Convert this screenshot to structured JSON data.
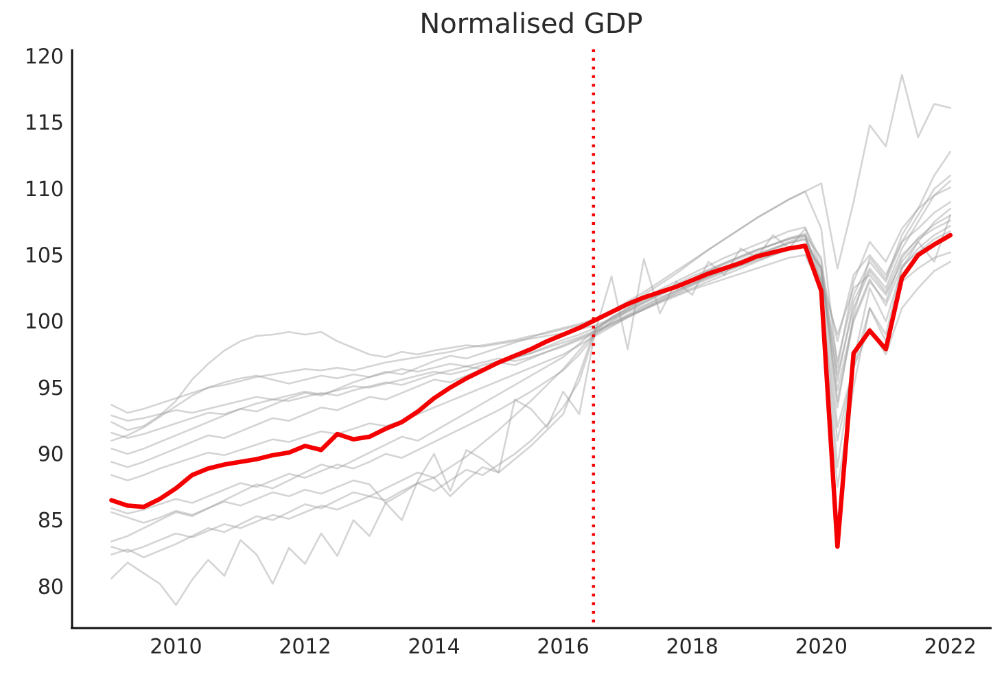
{
  "title": "Normalised GDP",
  "chart_data": {
    "type": "line",
    "title": "Normalised GDP",
    "xlabel": "",
    "ylabel": "",
    "grid": false,
    "legend": "none",
    "x_ticks": [
      "2010",
      "2012",
      "2014",
      "2016",
      "2018",
      "2020",
      "2022"
    ],
    "x_tick_values": [
      2010,
      2012,
      2014,
      2016,
      2018,
      2020,
      2022
    ],
    "y_ticks": [
      "80",
      "85",
      "90",
      "95",
      "100",
      "105",
      "110",
      "115",
      "120"
    ],
    "y_tick_values": [
      80,
      85,
      90,
      95,
      100,
      105,
      110,
      115,
      120
    ],
    "xlim": [
      2008.39,
      2022.64
    ],
    "ylim": [
      76.86,
      120.52
    ],
    "vline": {
      "x": 2016.47,
      "color": "#f40000",
      "style": "dotted"
    },
    "x": [
      2009.0,
      2009.25,
      2009.5,
      2009.75,
      2010.0,
      2010.25,
      2010.5,
      2010.75,
      2011.0,
      2011.25,
      2011.5,
      2011.75,
      2012.0,
      2012.25,
      2012.5,
      2012.75,
      2013.0,
      2013.25,
      2013.5,
      2013.75,
      2014.0,
      2014.25,
      2014.5,
      2014.75,
      2015.0,
      2015.25,
      2015.5,
      2015.75,
      2016.0,
      2016.25,
      2016.5,
      2016.75,
      2017.0,
      2017.25,
      2017.5,
      2017.75,
      2018.0,
      2018.25,
      2018.5,
      2018.75,
      2019.0,
      2019.25,
      2019.5,
      2019.75,
      2020.0,
      2020.25,
      2020.5,
      2020.75,
      2021.0,
      2021.25,
      2021.5,
      2021.75,
      2022.0
    ],
    "main_series": {
      "name": "highlighted-country",
      "color": "#f40000",
      "line_width": 6.5,
      "values": [
        86.5,
        86.1,
        86.0,
        86.6,
        87.4,
        88.4,
        88.9,
        89.2,
        89.4,
        89.6,
        89.9,
        90.1,
        90.6,
        90.3,
        91.5,
        91.1,
        91.3,
        91.9,
        92.4,
        93.2,
        94.2,
        95.0,
        95.7,
        96.3,
        96.9,
        97.4,
        97.9,
        98.5,
        99.0,
        99.5,
        100.1,
        100.7,
        101.3,
        101.8,
        102.2,
        102.6,
        103.1,
        103.6,
        104.0,
        104.4,
        104.9,
        105.2,
        105.5,
        105.7,
        102.3,
        83.0,
        97.6,
        99.3,
        97.9,
        103.3,
        105.0,
        105.8,
        106.5
      ]
    },
    "background_color": "#999999",
    "background_opacity": 0.42,
    "background_line_width": 2.6,
    "background_series": [
      {
        "name": "series-01",
        "values": [
          93.7,
          93.1,
          93.4,
          93.8,
          94.2,
          94.6,
          95.0,
          95.2,
          95.5,
          95.8,
          96.0,
          96.2,
          96.4,
          96.3,
          96.5,
          96.3,
          96.6,
          96.9,
          97.1,
          97.3,
          97.5,
          97.7,
          98.0,
          98.2,
          98.4,
          98.6,
          98.9,
          99.1,
          99.4,
          99.7,
          100.0,
          100.6,
          101.3,
          102.0,
          102.8,
          103.6,
          104.5,
          105.4,
          106.2,
          107.0,
          107.8,
          108.5,
          109.2,
          109.8,
          110.4,
          104.0,
          109.0,
          114.8,
          113.2,
          118.6,
          113.9,
          116.4,
          116.1
        ]
      },
      {
        "name": "series-02",
        "values": [
          92.4,
          91.8,
          92.1,
          92.9,
          94.0,
          95.6,
          96.8,
          97.8,
          98.5,
          98.9,
          99.0,
          99.2,
          99.0,
          99.2,
          98.5,
          98.0,
          97.5,
          97.3,
          97.7,
          97.5,
          97.8,
          98.0,
          98.2,
          98.1,
          98.3,
          98.5,
          98.7,
          98.9,
          99.1,
          99.4,
          99.7,
          100.2,
          100.8,
          101.4,
          102.0,
          102.6,
          103.2,
          103.8,
          104.4,
          104.9,
          105.4,
          105.8,
          106.2,
          106.5,
          104.8,
          95.5,
          101.5,
          104.0,
          102.5,
          105.5,
          107.5,
          109.5,
          110.6
        ]
      },
      {
        "name": "series-03",
        "values": [
          92.9,
          92.5,
          92.7,
          93.0,
          93.3,
          93.1,
          93.4,
          93.7,
          94.0,
          94.3,
          94.1,
          94.4,
          94.7,
          94.5,
          94.8,
          95.1,
          95.0,
          95.3,
          95.6,
          95.9,
          96.2,
          96.0,
          96.3,
          96.7,
          97.0,
          97.3,
          97.6,
          98.0,
          98.4,
          98.8,
          99.3,
          99.9,
          100.5,
          101.1,
          101.7,
          102.3,
          102.9,
          103.4,
          103.9,
          104.4,
          105.0,
          105.5,
          106.0,
          106.4,
          103.5,
          97.0,
          102.0,
          104.5,
          103.0,
          106.0,
          108.0,
          110.0,
          111.0
        ]
      },
      {
        "name": "series-04",
        "values": [
          91.6,
          91.2,
          91.5,
          91.9,
          92.3,
          92.7,
          93.1,
          93.0,
          93.4,
          93.8,
          94.1,
          94.0,
          94.3,
          94.6,
          94.4,
          94.8,
          95.1,
          95.4,
          95.2,
          95.6,
          96.0,
          96.3,
          96.6,
          96.4,
          96.8,
          97.2,
          97.6,
          98.1,
          98.6,
          99.0,
          99.5,
          100.1,
          100.7,
          101.2,
          101.8,
          102.3,
          102.8,
          103.3,
          103.8,
          104.2,
          104.6,
          105.0,
          105.4,
          105.6,
          103.0,
          99.0,
          102.5,
          103.5,
          102.0,
          104.5,
          106.0,
          107.5,
          108.5
        ]
      },
      {
        "name": "series-05",
        "values": [
          91.0,
          91.4,
          92.0,
          92.8,
          93.6,
          94.4,
          95.0,
          95.4,
          95.7,
          95.9,
          95.6,
          95.3,
          95.6,
          95.9,
          95.7,
          96.0,
          95.8,
          96.1,
          96.4,
          96.2,
          96.5,
          96.8,
          96.6,
          96.9,
          97.2,
          97.0,
          97.3,
          97.7,
          98.1,
          98.6,
          99.1,
          99.7,
          100.3,
          100.9,
          101.5,
          102.0,
          102.5,
          103.0,
          103.5,
          104.0,
          104.5,
          105.0,
          105.5,
          105.8,
          104.0,
          94.0,
          100.0,
          103.0,
          101.5,
          104.8,
          106.3,
          107.3,
          108.0
        ]
      },
      {
        "name": "series-06",
        "values": [
          90.4,
          90.0,
          90.4,
          90.9,
          91.4,
          91.9,
          92.4,
          92.9,
          93.4,
          93.2,
          93.7,
          94.2,
          94.6,
          94.4,
          94.9,
          95.4,
          95.8,
          96.2,
          96.0,
          96.5,
          97.0,
          97.4,
          97.2,
          97.6,
          98.0,
          98.4,
          98.8,
          99.2,
          99.5,
          99.8,
          100.2,
          100.8,
          101.5,
          102.2,
          103.0,
          103.8,
          104.6,
          105.4,
          106.2,
          107.0,
          107.8,
          108.5,
          109.2,
          109.8,
          107.0,
          96.5,
          103.0,
          106.0,
          104.5,
          107.0,
          108.5,
          109.5,
          110.1
        ]
      },
      {
        "name": "series-07",
        "values": [
          89.4,
          89.0,
          89.4,
          89.9,
          90.4,
          90.9,
          91.4,
          91.2,
          91.7,
          92.2,
          92.7,
          92.5,
          93.0,
          93.5,
          93.3,
          93.8,
          94.3,
          94.1,
          94.6,
          95.1,
          95.6,
          95.4,
          95.9,
          96.4,
          96.9,
          96.7,
          97.2,
          97.7,
          98.2,
          98.7,
          99.2,
          99.8,
          100.4,
          101.0,
          101.6,
          102.2,
          102.8,
          103.4,
          103.9,
          104.4,
          104.9,
          105.4,
          105.9,
          106.2,
          104.0,
          98.5,
          103.5,
          105.0,
          103.5,
          106.0,
          107.0,
          108.2,
          109.0
        ]
      },
      {
        "name": "series-08",
        "values": [
          88.4,
          88.0,
          88.4,
          88.9,
          89.3,
          89.7,
          90.1,
          89.9,
          90.3,
          90.7,
          91.1,
          90.9,
          91.3,
          91.7,
          91.5,
          91.9,
          92.3,
          92.1,
          92.5,
          93.0,
          93.5,
          94.0,
          94.5,
          95.0,
          95.5,
          96.0,
          96.5,
          97.0,
          97.5,
          98.2,
          98.9,
          99.6,
          100.3,
          100.9,
          101.5,
          102.1,
          102.7,
          103.2,
          103.7,
          104.2,
          104.7,
          105.1,
          105.5,
          105.8,
          103.2,
          96.0,
          101.0,
          103.8,
          102.2,
          105.0,
          106.2,
          107.0,
          107.6
        ]
      },
      {
        "name": "series-09",
        "values": [
          85.9,
          85.5,
          85.8,
          86.2,
          86.6,
          86.3,
          86.8,
          87.3,
          87.8,
          87.5,
          88.0,
          88.5,
          88.2,
          88.7,
          89.2,
          88.9,
          89.4,
          90.0,
          89.7,
          90.3,
          90.9,
          91.5,
          92.1,
          92.7,
          93.3,
          94.0,
          94.7,
          95.5,
          96.3,
          97.5,
          99.0,
          100.0,
          100.8,
          101.4,
          102.0,
          102.6,
          103.2,
          103.8,
          104.3,
          104.8,
          105.3,
          105.8,
          106.3,
          106.6,
          103.0,
          89.0,
          97.0,
          102.5,
          100.0,
          104.0,
          105.5,
          106.5,
          107.2
        ]
      },
      {
        "name": "series-10",
        "values": [
          85.6,
          85.2,
          84.8,
          85.2,
          85.7,
          85.4,
          85.9,
          86.4,
          86.1,
          86.6,
          87.1,
          86.8,
          87.3,
          87.0,
          87.5,
          88.0,
          87.7,
          86.3,
          87.0,
          87.8,
          87.2,
          88.0,
          88.8,
          88.4,
          89.2,
          90.0,
          91.0,
          92.2,
          93.5,
          95.5,
          99.3,
          100.3,
          101.0,
          101.6,
          102.2,
          102.8,
          103.4,
          103.9,
          104.4,
          104.9,
          105.4,
          105.8,
          106.2,
          106.5,
          102.0,
          87.5,
          95.0,
          101.0,
          98.5,
          103.0,
          104.0,
          104.8,
          105.2
        ]
      },
      {
        "name": "series-11",
        "values": [
          83.4,
          83.8,
          84.4,
          85.0,
          85.6,
          85.3,
          85.9,
          86.5,
          87.1,
          87.7,
          87.4,
          88.0,
          88.6,
          89.2,
          88.9,
          89.5,
          90.1,
          90.7,
          91.3,
          91.0,
          91.7,
          92.4,
          93.1,
          93.8,
          94.5,
          95.2,
          95.9,
          96.6,
          97.3,
          98.3,
          99.4,
          100.2,
          101.0,
          101.7,
          102.4,
          103.0,
          103.6,
          104.2,
          104.8,
          105.3,
          105.8,
          106.3,
          106.8,
          107.1,
          104.5,
          93.5,
          100.5,
          104.8,
          103.2,
          106.5,
          108.5,
          111.0,
          112.8
        ]
      },
      {
        "name": "series-12",
        "values": [
          83.0,
          82.6,
          83.0,
          83.5,
          84.0,
          83.7,
          84.2,
          84.7,
          84.4,
          84.9,
          85.4,
          85.1,
          85.6,
          86.1,
          85.8,
          86.3,
          86.8,
          86.5,
          87.2,
          87.8,
          88.2,
          89.0,
          89.8,
          90.8,
          91.8,
          92.9,
          94.0,
          95.2,
          96.4,
          97.8,
          99.2,
          99.8,
          100.4,
          100.9,
          101.4,
          101.9,
          102.4,
          102.8,
          103.2,
          103.6,
          104.0,
          104.4,
          104.8,
          105.0,
          102.5,
          91.0,
          96.5,
          99.5,
          97.5,
          101.0,
          102.5,
          103.8,
          104.5
        ]
      },
      {
        "name": "series-13",
        "values": [
          82.4,
          82.8,
          82.2,
          82.7,
          83.2,
          83.8,
          84.4,
          84.1,
          84.7,
          85.3,
          85.0,
          85.6,
          86.2,
          85.9,
          86.5,
          87.1,
          86.8,
          87.4,
          88.0,
          88.6,
          88.2,
          86.8,
          88.0,
          89.0,
          88.6,
          89.6,
          90.6,
          91.8,
          93.0,
          96.0,
          99.5,
          100.3,
          100.9,
          101.5,
          102.1,
          102.6,
          103.1,
          103.6,
          104.1,
          104.6,
          105.1,
          105.5,
          105.9,
          106.2,
          103.8,
          94.8,
          100.2,
          103.2,
          101.2,
          104.2,
          105.2,
          106.2,
          106.8
        ]
      },
      {
        "name": "series-14",
        "values": [
          80.6,
          81.8,
          81.0,
          80.2,
          78.6,
          80.5,
          82.0,
          80.8,
          83.5,
          82.4,
          80.2,
          82.9,
          81.7,
          84.0,
          82.3,
          85.0,
          83.8,
          86.3,
          85.0,
          88.0,
          90.0,
          87.2,
          90.3,
          89.6,
          88.6,
          94.1,
          93.4,
          92.0,
          94.7,
          93.0,
          99.3,
          103.4,
          97.9,
          104.7,
          100.6,
          103.0,
          102.0,
          104.5,
          103.5,
          105.5,
          104.8,
          106.5,
          105.5,
          107.0,
          104.0,
          92.0,
          96.5,
          101.0,
          99.0,
          104.0,
          106.0,
          104.5,
          108.0
        ]
      }
    ],
    "axis": {
      "spine_color": "#111111",
      "spine_width": 3,
      "tick_label_color": "#262626",
      "tick_label_size": 30,
      "title_size": 40,
      "title_color": "#2b2b2b"
    }
  }
}
